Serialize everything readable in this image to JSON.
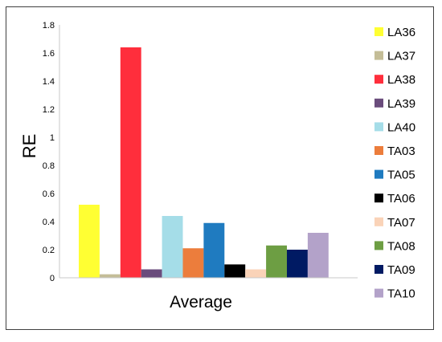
{
  "chart_data": {
    "type": "bar",
    "categories": [
      "Average"
    ],
    "xlabel": "Average",
    "ylabel": "RE",
    "ylim": [
      0,
      1.8
    ],
    "yticks": [
      "0",
      "0.2",
      "0.4",
      "0.6",
      "0.8",
      "1",
      "1.2",
      "1.4",
      "1.6",
      "1.8"
    ],
    "grid": false,
    "legend_position": "right",
    "series": [
      {
        "name": "LA36",
        "value": 0.52,
        "color": "#FFFF33"
      },
      {
        "name": "LA37",
        "value": 0.025,
        "color": "#C4BD97"
      },
      {
        "name": "LA38",
        "value": 1.64,
        "color": "#FF2E3C"
      },
      {
        "name": "LA39",
        "value": 0.06,
        "color": "#6A4C7C"
      },
      {
        "name": "LA40",
        "value": 0.44,
        "color": "#A5DDE8"
      },
      {
        "name": "TA03",
        "value": 0.21,
        "color": "#EC7D3C"
      },
      {
        "name": "TA05",
        "value": 0.39,
        "color": "#1F7BC0"
      },
      {
        "name": "TA06",
        "value": 0.095,
        "color": "#000000"
      },
      {
        "name": "TA07",
        "value": 0.06,
        "color": "#FAD3B8"
      },
      {
        "name": "TA08",
        "value": 0.23,
        "color": "#6D9E43"
      },
      {
        "name": "TA09",
        "value": 0.2,
        "color": "#001A63"
      },
      {
        "name": "TA10",
        "value": 0.32,
        "color": "#B3A2C9"
      }
    ]
  }
}
